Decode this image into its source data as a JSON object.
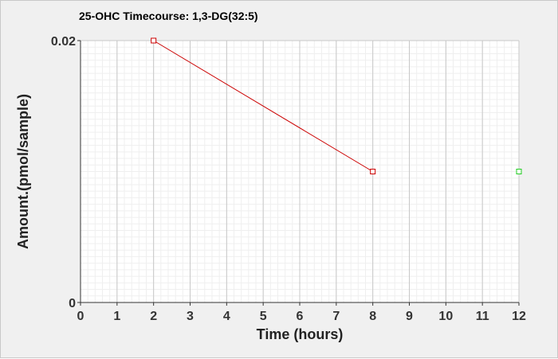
{
  "chart_data": {
    "type": "line",
    "title": "25-OHC Timecourse: 1,3-DG(32:5)",
    "xlabel": "Time (hours)",
    "ylabel": "Amount.(pmol/sample)",
    "xlim": [
      0,
      12
    ],
    "ylim": [
      0,
      0.02
    ],
    "x_ticks": [
      0,
      1,
      2,
      3,
      4,
      5,
      6,
      7,
      8,
      9,
      10,
      11,
      12
    ],
    "y_ticks": [
      0,
      0.02
    ],
    "x_tick_labels": [
      "0",
      "1",
      "2",
      "3",
      "4",
      "5",
      "6",
      "7",
      "8",
      "9",
      "10",
      "11",
      "12"
    ],
    "y_tick_labels": [
      "0",
      "0.02"
    ],
    "grid": true,
    "series": [
      {
        "color": "#cc0000",
        "marker": "square",
        "connected": true,
        "x": [
          2,
          8
        ],
        "y": [
          0.02,
          0.01
        ]
      },
      {
        "color": "#22cc22",
        "marker": "square",
        "connected": false,
        "x": [
          12
        ],
        "y": [
          0.01
        ]
      }
    ]
  }
}
